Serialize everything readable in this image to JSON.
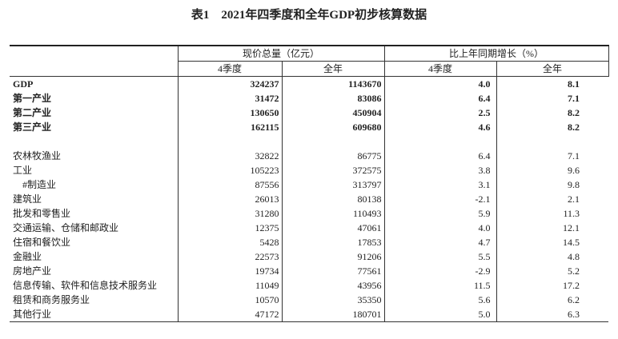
{
  "title": "表1　2021年四季度和全年GDP初步核算数据",
  "table": {
    "header": {
      "groups": [
        "现价总量（亿元）",
        "比上年同期增长（%）"
      ],
      "sub": [
        "4季度",
        "全年",
        "4季度",
        "全年"
      ]
    },
    "summary_rows": [
      [
        "GDP",
        "324237",
        "1143670",
        "4.0",
        "8.1"
      ],
      [
        "第一产业",
        "31472",
        "83086",
        "6.4",
        "7.1"
      ],
      [
        "第二产业",
        "130650",
        "450904",
        "2.5",
        "8.2"
      ],
      [
        "第三产业",
        "162115",
        "609680",
        "4.6",
        "8.2"
      ]
    ],
    "industry_rows": [
      [
        "农林牧渔业",
        "32822",
        "86775",
        "6.4",
        "7.1"
      ],
      [
        "工业",
        "105223",
        "372575",
        "3.8",
        "9.6"
      ],
      [
        "#制造业",
        "87556",
        "313797",
        "3.1",
        "9.8"
      ],
      [
        "建筑业",
        "26013",
        "80138",
        "-2.1",
        "2.1"
      ],
      [
        "批发和零售业",
        "31280",
        "110493",
        "5.9",
        "11.3"
      ],
      [
        "交通运输、仓储和邮政业",
        "12375",
        "47061",
        "4.0",
        "12.1"
      ],
      [
        "住宿和餐饮业",
        "5428",
        "17853",
        "4.7",
        "14.5"
      ],
      [
        "金融业",
        "22573",
        "91206",
        "5.5",
        "4.8"
      ],
      [
        "房地产业",
        "19734",
        "77561",
        "-2.9",
        "5.2"
      ],
      [
        "信息传输、软件和信息技术服务业",
        "11049",
        "43956",
        "11.5",
        "17.2"
      ],
      [
        "租赁和商务服务业",
        "10570",
        "35350",
        "5.6",
        "6.2"
      ],
      [
        "其他行业",
        "47172",
        "180701",
        "5.0",
        "6.3"
      ]
    ]
  }
}
